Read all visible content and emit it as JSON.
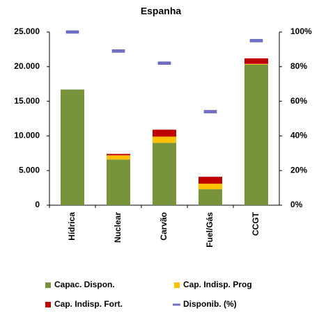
{
  "chart_data": {
    "type": "bar",
    "stacked": true,
    "title": "Espanha",
    "categories": [
      "Hídrica",
      "Nuclear",
      "Carvão",
      "Fuel/Gás",
      "CCGT"
    ],
    "series": [
      {
        "name": "Capac. Dispon.",
        "color": "#77933c",
        "values": [
          16700,
          6600,
          9000,
          2300,
          20300
        ]
      },
      {
        "name": "Cap. Indisp.  Prog",
        "color": "#ffc000",
        "values": [
          0,
          600,
          900,
          800,
          100
        ]
      },
      {
        "name": "Cap. Indisp.  Fort.",
        "color": "#c00000",
        "values": [
          0,
          200,
          1000,
          1000,
          800
        ]
      },
      {
        "name": "Disponib. (%)",
        "color": "#7070c8",
        "axis": "y2",
        "marker": "dash",
        "values": [
          100,
          89,
          82,
          54,
          95
        ]
      }
    ],
    "ylim": [
      0,
      25000
    ],
    "yticks": [
      0,
      {
        "value": 5000,
        "label": "5.000"
      },
      {
        "value": 10000,
        "label": "10.000"
      },
      {
        "value": 15000,
        "label": "15.000"
      },
      {
        "value": 20000,
        "label": "20.000"
      },
      {
        "value": 25000,
        "label": "25.000"
      }
    ],
    "y2lim": [
      0,
      100
    ],
    "y2ticks": [
      {
        "value": 0,
        "label": "0%"
      },
      {
        "value": 20,
        "label": "20%"
      },
      {
        "value": 40,
        "label": "40%"
      },
      {
        "value": 60,
        "label": "60%"
      },
      {
        "value": 80,
        "label": "80%"
      },
      {
        "value": 100,
        "label": "100%"
      }
    ],
    "grid": false
  }
}
